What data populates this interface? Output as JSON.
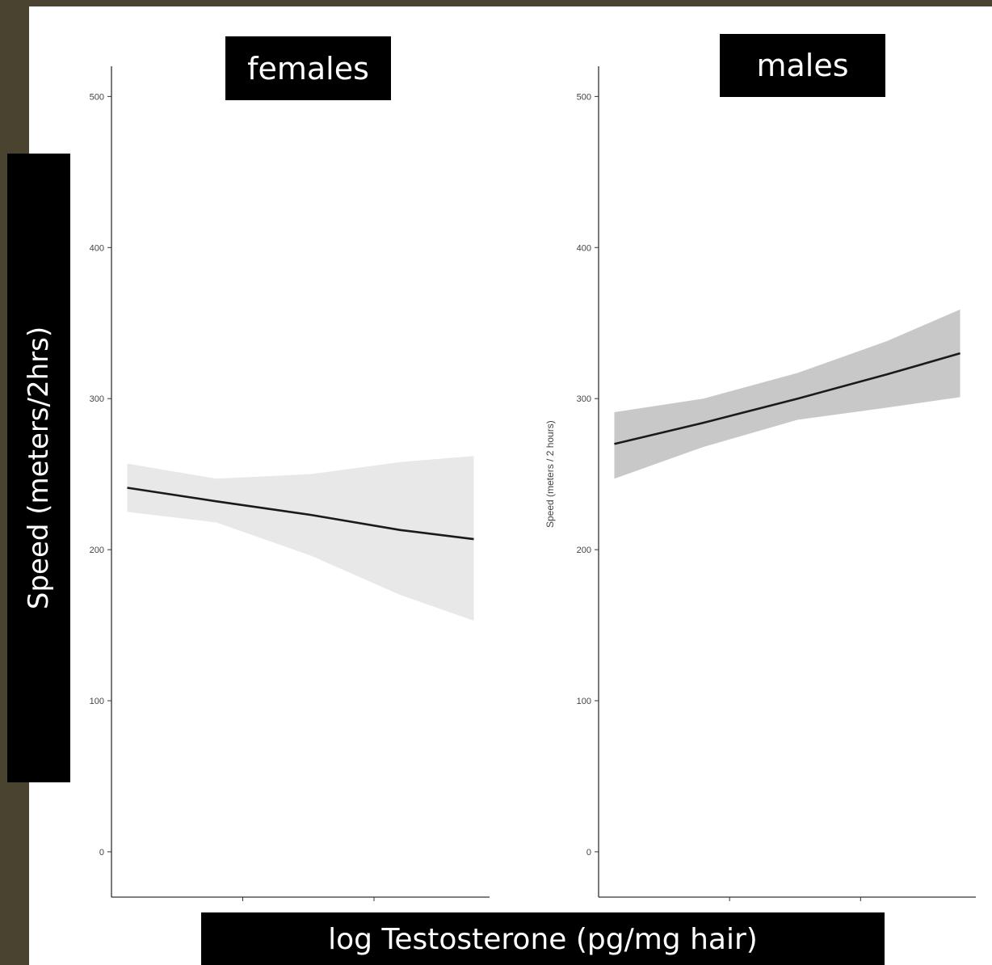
{
  "chart_data": [
    {
      "type": "line",
      "title": "females",
      "xlabel": "log  Testosterone (pg/mg hair)",
      "ylabel": "Speed (meters/2hrs)",
      "ylim": [
        -30,
        520
      ],
      "y_ticks": [
        0,
        100,
        200,
        300,
        400,
        500
      ],
      "x_ticks": [
        0.25,
        0.5
      ],
      "x_tick_labels": [
        "",
        ""
      ],
      "xlim": [
        0.0,
        0.72
      ],
      "grid": false,
      "series": [
        {
          "x": [
            0.03,
            0.2,
            0.38,
            0.55,
            0.69
          ],
          "values": [
            241,
            232,
            223,
            213,
            207
          ],
          "upper": [
            257,
            247,
            250,
            258,
            262
          ],
          "lower": [
            225,
            218,
            196,
            170,
            153
          ],
          "line_color": "#1a1a1a",
          "band_color": "#e8e8e8"
        }
      ]
    },
    {
      "type": "line",
      "title": "males",
      "xlabel": "",
      "ylabel": "Speed (meters / 2 hours)",
      "ylim": [
        -30,
        520
      ],
      "y_ticks": [
        0,
        100,
        200,
        300,
        400,
        500
      ],
      "x_ticks": [
        0.25,
        0.5
      ],
      "x_tick_labels": [
        "",
        ""
      ],
      "xlim": [
        0.0,
        0.72
      ],
      "grid": false,
      "series": [
        {
          "x": [
            0.03,
            0.2,
            0.38,
            0.55,
            0.69
          ],
          "values": [
            270,
            284,
            300,
            316,
            330
          ],
          "upper": [
            291,
            300,
            317,
            338,
            359
          ],
          "lower": [
            247,
            268,
            286,
            294,
            301
          ],
          "line_color": "#1a1a1a",
          "band_color": "#c8c8c8"
        }
      ]
    }
  ],
  "overlay": {
    "females_title": "females",
    "males_title": "males",
    "ylabel": "Speed (meters/2hrs)",
    "xlabel": "log  Testosterone (pg/mg hair)"
  }
}
